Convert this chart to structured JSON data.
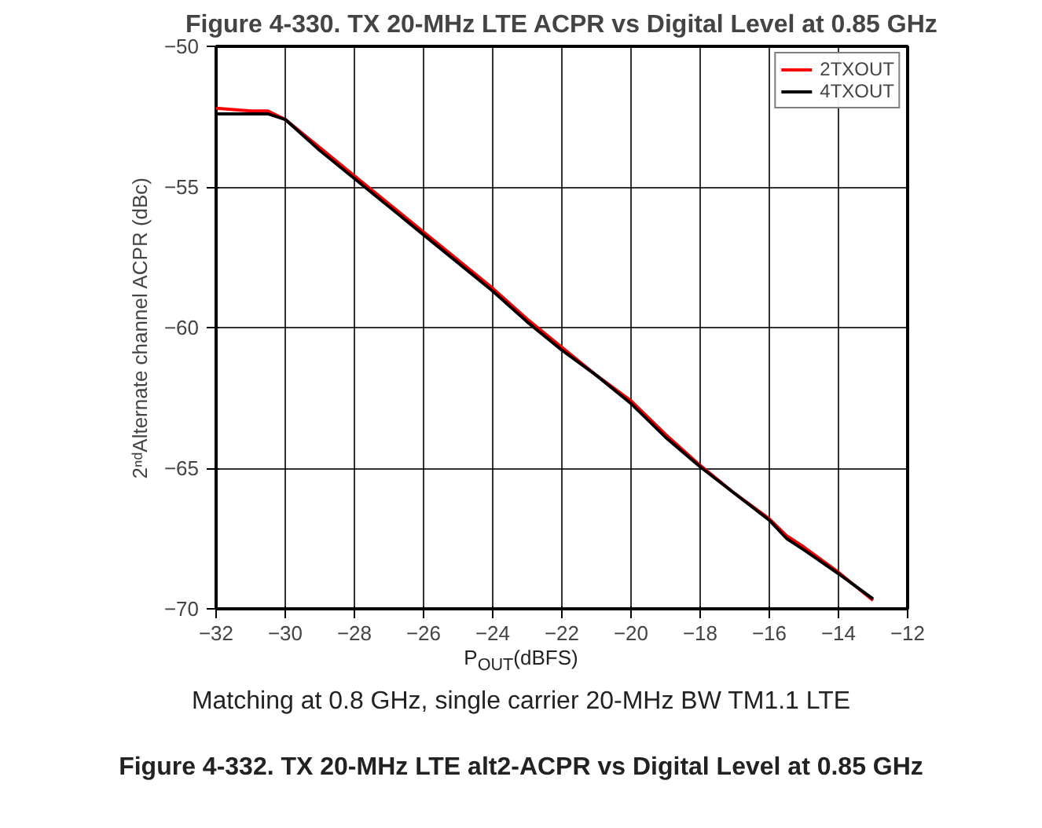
{
  "chart_data": {
    "type": "line",
    "title": "Figure 4-330. TX 20-MHz LTE ACPR vs Digital Level at 0.85 GHz",
    "xlabel": "P$_{OUT}$(dBFS)",
    "ylabel": "2ⁿᵈAlternate channel ACPR (dBc)",
    "annotations": [
      "Matching at 0.8 GHz, single carrier 20-MHz BW TM1.1 LTE",
      "Figure 4-332. TX 20-MHz LTE alt2-ACPR vs Digital Level at 0.85 GHz"
    ],
    "x": [
      -32,
      -31,
      -30.5,
      -30,
      -29,
      -28,
      -27,
      -26,
      -25,
      -24,
      -23,
      -22,
      -21,
      -20,
      -19,
      -18,
      -17,
      -16,
      -15.5,
      -15,
      -14,
      -13
    ],
    "series": [
      {
        "name": "2TXOUT",
        "color": "#ff0000",
        "values": [
          -52.2,
          -52.3,
          -52.3,
          -52.6,
          -53.6,
          -54.6,
          -55.6,
          -56.6,
          -57.6,
          -58.6,
          -59.7,
          -60.7,
          -61.7,
          -62.6,
          -63.8,
          -64.9,
          -65.9,
          -66.8,
          -67.4,
          -67.8,
          -68.7,
          -69.7
        ]
      },
      {
        "name": "4TXOUT",
        "color": "#000000",
        "values": [
          -52.4,
          -52.4,
          -52.4,
          -52.6,
          -53.7,
          -54.7,
          -55.7,
          -56.7,
          -57.7,
          -58.7,
          -59.8,
          -60.8,
          -61.7,
          -62.7,
          -63.9,
          -64.95,
          -65.9,
          -66.85,
          -67.5,
          -67.9,
          -68.75,
          -69.65
        ]
      }
    ],
    "xlim": [
      -32,
      -12
    ],
    "xticks": [
      -32,
      -30,
      -28,
      -26,
      -24,
      -22,
      -20,
      -18,
      -16,
      -14,
      -12
    ],
    "ylim": [
      -70,
      -50
    ],
    "yticks": [
      -70,
      -65,
      -60,
      -55,
      -50
    ],
    "grid": true,
    "legend": "top right",
    "line_style": "solid",
    "marker": "none"
  }
}
